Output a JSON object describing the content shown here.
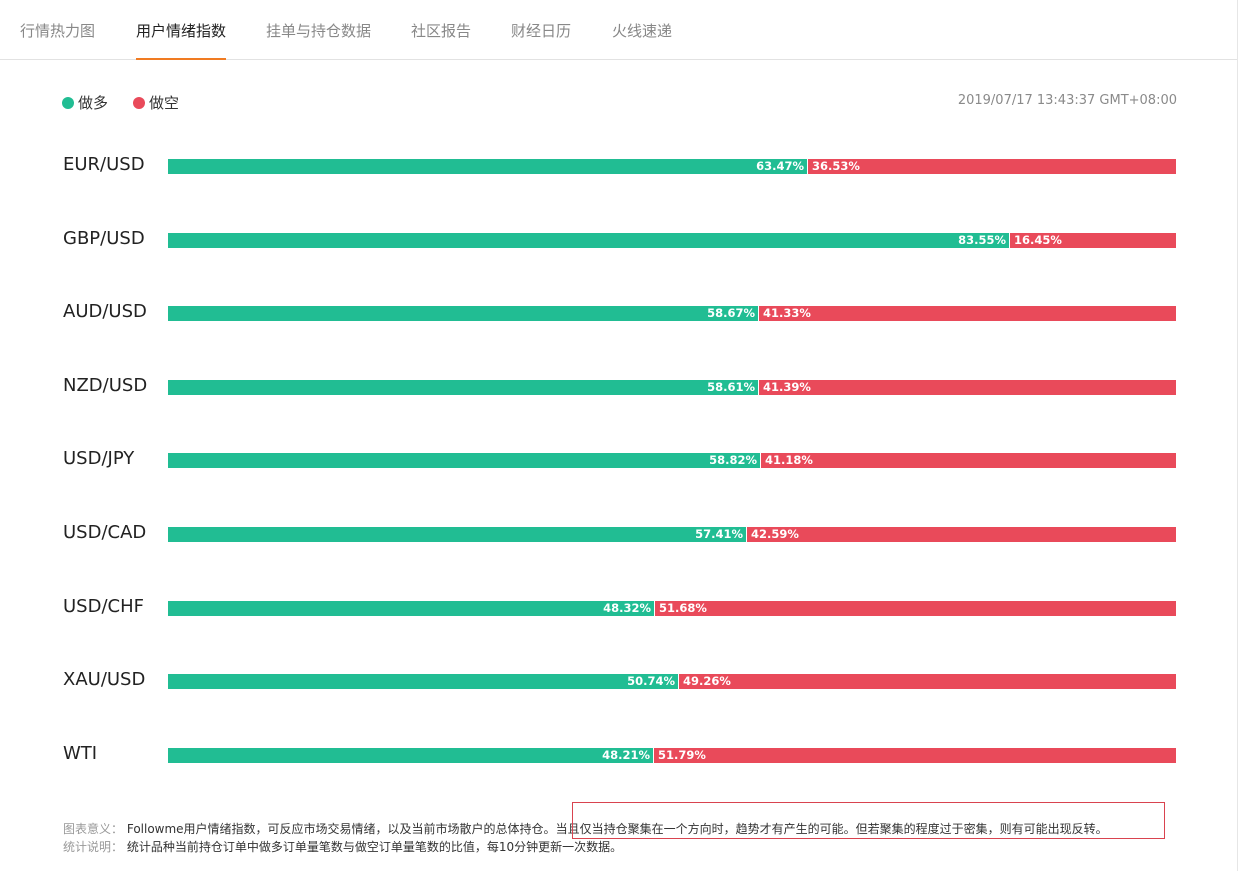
{
  "tabs": [
    {
      "label": "行情热力图",
      "active": false
    },
    {
      "label": "用户情绪指数",
      "active": true
    },
    {
      "label": "挂单与持仓数据",
      "active": false
    },
    {
      "label": "社区报告",
      "active": false
    },
    {
      "label": "财经日历",
      "active": false
    },
    {
      "label": "火线速递",
      "active": false
    }
  ],
  "legend": {
    "long": {
      "label": "做多",
      "color": "#21bd93"
    },
    "short": {
      "label": "做空",
      "color": "#e94a5a"
    }
  },
  "timestamp": "2019/07/17 13:43:37 GMT+08:00",
  "chart_data": {
    "type": "bar",
    "orientation": "horizontal",
    "stacked": true,
    "categories": [
      "EUR/USD",
      "GBP/USD",
      "AUD/USD",
      "NZD/USD",
      "USD/JPY",
      "USD/CAD",
      "USD/CHF",
      "XAU/USD",
      "WTI"
    ],
    "series": [
      {
        "name": "做多",
        "color": "#21bd93",
        "values": [
          63.47,
          83.55,
          58.67,
          58.61,
          58.82,
          57.41,
          48.32,
          50.74,
          48.21
        ]
      },
      {
        "name": "做空",
        "color": "#e94a5a",
        "values": [
          36.53,
          16.45,
          41.33,
          41.39,
          41.18,
          42.59,
          51.68,
          49.26,
          51.79
        ]
      }
    ],
    "value_labels": {
      "long": [
        "63.47%",
        "83.55%",
        "58.67%",
        "58.61%",
        "58.82%",
        "57.41%",
        "48.32%",
        "50.74%",
        "48.21%"
      ],
      "short": [
        "36.53%",
        "16.45%",
        "41.33%",
        "41.39%",
        "41.18%",
        "42.59%",
        "51.68%",
        "49.26%",
        "51.79%"
      ]
    },
    "xlim": [
      0,
      100
    ],
    "legend_position": "top-left",
    "grid": false
  },
  "notes": {
    "meaning_key": "图表意义：",
    "meaning_text": "Followme用户情绪指数，可反应市场交易情绪，以及当前市场散户的总体持仓。",
    "meaning_highlight": "当且仅当持仓聚集在一个方向时，趋势才有产生的可能。但若聚集的程度过于密集，则有可能出现反转。",
    "stats_key": "统计说明：",
    "stats_text": "统计品种当前持仓订单中做多订单量笔数与做空订单量笔数的比值，每10分钟更新一次数据。"
  }
}
